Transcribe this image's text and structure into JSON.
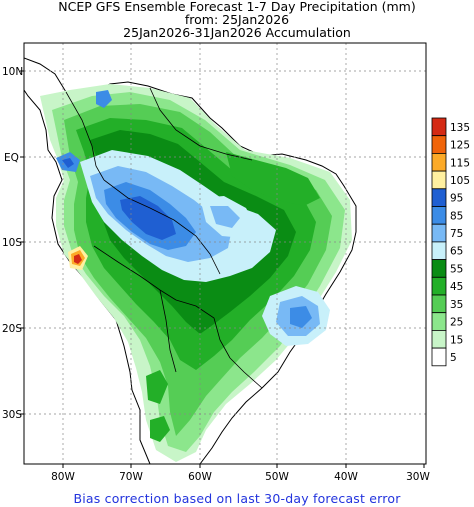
{
  "title": {
    "line1": "NCEP GFS Ensemble Forecast 1-7 Day Precipitation (mm)",
    "line2": "from: 25Jan2026",
    "line3": "25Jan2026-31Jan2026 Accumulation"
  },
  "axes": {
    "lat_labels": [
      "10N",
      "EQ",
      "10S",
      "20S",
      "30S"
    ],
    "lon_labels": [
      "80W",
      "70W",
      "60W",
      "50W",
      "40W",
      "30W"
    ]
  },
  "legend": {
    "levels": [
      "135",
      "125",
      "115",
      "105",
      "95",
      "85",
      "75",
      "65",
      "55",
      "45",
      "35",
      "25",
      "15",
      "5"
    ],
    "colors": [
      "#d42a14",
      "#f0640a",
      "#fcaa28",
      "#fff0a0",
      "#1f5fd2",
      "#3c8ce6",
      "#78b9f5",
      "#c8f0fa",
      "#0a8c14",
      "#23af28",
      "#55cd55",
      "#8ce68c",
      "#c8f5c8",
      "#ffffff"
    ]
  },
  "footer": "Bias correction based on last 30-day forecast error"
}
